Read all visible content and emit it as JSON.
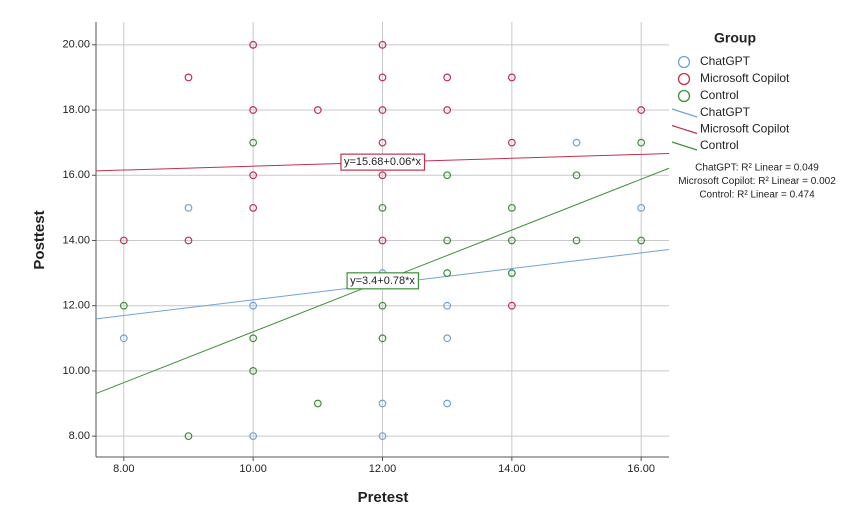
{
  "chart_data": {
    "type": "scatter",
    "x_label": "Pretest",
    "y_label": "Posttest",
    "legend_title": "Group",
    "xlim": [
      7.57,
      16.43
    ],
    "ylim": [
      7.36,
      20.7
    ],
    "xticks": [
      {
        "value": 8,
        "label": "8.00"
      },
      {
        "value": 10,
        "label": "10.00"
      },
      {
        "value": 12,
        "label": "12.00"
      },
      {
        "value": 14,
        "label": "14.00"
      },
      {
        "value": 16,
        "label": "16.00"
      }
    ],
    "yticks": [
      {
        "value": 8,
        "label": "8.00"
      },
      {
        "value": 10,
        "label": "10.00"
      },
      {
        "value": 12,
        "label": "12.00"
      },
      {
        "value": 14,
        "label": "14.00"
      },
      {
        "value": 16,
        "label": "16.00"
      },
      {
        "value": 18,
        "label": "18.00"
      },
      {
        "value": 20,
        "label": "20.00"
      }
    ],
    "grid": true,
    "series": [
      {
        "name": "ChatGPT",
        "color": "#6fa3d8",
        "x": [
          8,
          9,
          10,
          10,
          12,
          12,
          12,
          13,
          13,
          13,
          14,
          15,
          16
        ],
        "values": [
          11,
          15,
          12,
          8,
          9,
          8,
          13,
          12,
          11,
          9,
          13,
          17,
          15
        ],
        "fit": {
          "intercept": 9.78,
          "slope": 0.24
        },
        "r2_label": "ChatGPT: R² Linear = 0.049"
      },
      {
        "name": "Microsoft Copilot",
        "color": "#c2304e",
        "x": [
          10,
          12,
          9,
          12,
          13,
          14,
          10,
          11,
          12,
          13,
          16,
          12,
          14,
          10,
          12,
          10,
          8,
          9,
          12,
          14
        ],
        "values": [
          20,
          20,
          19,
          19,
          19,
          19,
          18,
          18,
          18,
          18,
          18,
          17,
          17,
          16,
          16,
          15,
          14,
          14,
          14,
          12
        ],
        "fit": {
          "intercept": 15.68,
          "slope": 0.06
        },
        "equation_label": "y=15.68+0.06*x",
        "r2_label": "Microsoft Copilot: R² Linear = 0.002"
      },
      {
        "name": "Control",
        "color": "#3f8f3a",
        "x": [
          10,
          16,
          13,
          15,
          12,
          14,
          13,
          14,
          15,
          16,
          8,
          12,
          12,
          13,
          14,
          10,
          10,
          11,
          9
        ],
        "values": [
          17,
          17,
          16,
          16,
          15,
          15,
          14,
          14,
          14,
          14,
          12,
          12,
          11,
          13,
          13,
          11,
          10,
          9,
          8
        ],
        "fit": {
          "intercept": 3.4,
          "slope": 0.78
        },
        "equation_label": "y=3.4+0.78*x",
        "r2_label": "Control: R² Linear = 0.474"
      }
    ]
  }
}
